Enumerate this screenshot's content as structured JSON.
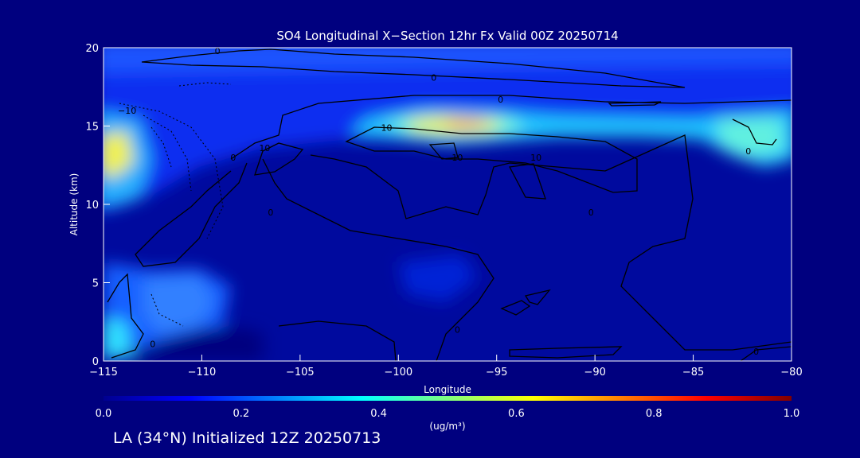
{
  "chart_data": {
    "type": "heatmap",
    "title": "SO4 Longitudinal X−Section 12hr  Fx Valid 00Z 20250714",
    "xlabel": "Longitude",
    "ylabel": "Altitude (km)",
    "xlim": [
      -115,
      -80
    ],
    "ylim": [
      0,
      20
    ],
    "x_ticks": [
      -115,
      -110,
      -105,
      -100,
      -95,
      -90,
      -85,
      -80
    ],
    "x_tick_labels": [
      "−115",
      "−110",
      "−105",
      "−100",
      "−95",
      "−90",
      "−85",
      "−80"
    ],
    "y_ticks": [
      0,
      5,
      10,
      15,
      20
    ],
    "y_tick_labels": [
      "0",
      "5",
      "10",
      "15",
      "20"
    ],
    "colorbar": {
      "min": 0.0,
      "max": 1.0,
      "ticks": [
        0.0,
        0.2,
        0.4,
        0.6,
        0.8,
        1.0
      ],
      "tick_labels": [
        "0.0",
        "0.2",
        "0.4",
        "0.6",
        "0.8",
        "1.0"
      ],
      "units_label": "(ug/m³)",
      "colormap": "jet"
    },
    "grid_lon": [
      -115,
      -112.5,
      -110,
      -107.5,
      -105,
      -102.5,
      -100,
      -97.5,
      -95,
      -92.5,
      -90,
      -87.5,
      -85,
      -82.5,
      -80
    ],
    "grid_alt": [
      0,
      1,
      2,
      3,
      4,
      5,
      6,
      7,
      8,
      9,
      10,
      11,
      12,
      13,
      14,
      15,
      16,
      17,
      18,
      19,
      20
    ],
    "contour_labels": [
      {
        "text": "0",
        "lon": -109.2,
        "alt": 19.8
      },
      {
        "text": "0",
        "lon": -98.2,
        "alt": 18.1
      },
      {
        "text": "0",
        "lon": -94.8,
        "alt": 16.7
      },
      {
        "text": "−10",
        "lon": -113.8,
        "alt": 16.0
      },
      {
        "text": "10",
        "lon": -100.6,
        "alt": 14.9
      },
      {
        "text": "10",
        "lon": -106.8,
        "alt": 13.6
      },
      {
        "text": "10",
        "lon": -97.0,
        "alt": 13.0
      },
      {
        "text": "10",
        "lon": -93.0,
        "alt": 13.0
      },
      {
        "text": "0",
        "lon": -108.4,
        "alt": 13.0
      },
      {
        "text": "0",
        "lon": -82.2,
        "alt": 13.4
      },
      {
        "text": "0",
        "lon": -106.5,
        "alt": 9.5
      },
      {
        "text": "0",
        "lon": -90.2,
        "alt": 9.5
      },
      {
        "text": "0",
        "lon": -112.5,
        "alt": 1.1
      },
      {
        "text": "0",
        "lon": -97.0,
        "alt": 2.0
      },
      {
        "text": "0",
        "lon": -81.8,
        "alt": 0.6
      }
    ]
  },
  "footer": "LA (34°N) Initialized 12Z 20250713"
}
